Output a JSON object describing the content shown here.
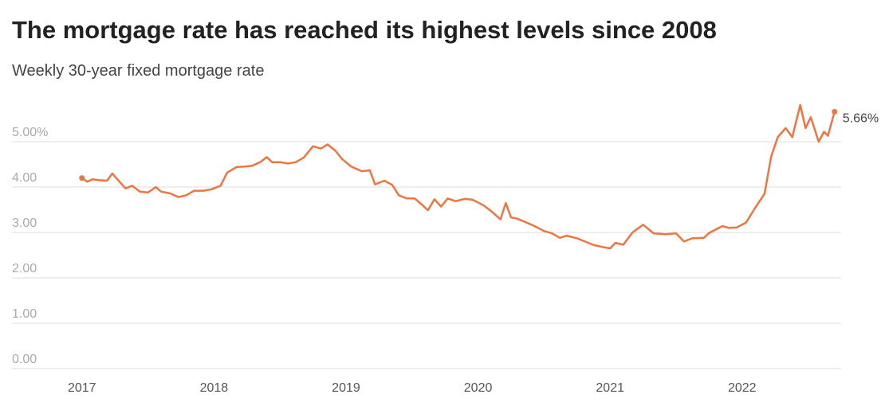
{
  "chart_data": {
    "type": "line",
    "title": "The mortgage rate has reached its highest levels since 2008",
    "subtitle": "Weekly 30-year fixed mortgage rate",
    "x": [
      2017.0,
      2017.04,
      2017.08,
      2017.13,
      2017.19,
      2017.23,
      2017.29,
      2017.33,
      2017.38,
      2017.44,
      2017.5,
      2017.56,
      2017.6,
      2017.67,
      2017.73,
      2017.79,
      2017.85,
      2017.92,
      2017.98,
      2018.05,
      2018.1,
      2018.17,
      2018.23,
      2018.29,
      2018.35,
      2018.4,
      2018.44,
      2018.5,
      2018.56,
      2018.62,
      2018.68,
      2018.75,
      2018.81,
      2018.86,
      2018.92,
      2018.97,
      2019.04,
      2019.12,
      2019.18,
      2019.22,
      2019.29,
      2019.35,
      2019.4,
      2019.46,
      2019.52,
      2019.58,
      2019.62,
      2019.67,
      2019.72,
      2019.77,
      2019.83,
      2019.9,
      2019.96,
      2020.04,
      2020.1,
      2020.17,
      2020.21,
      2020.25,
      2020.29,
      2020.35,
      2020.42,
      2020.5,
      2020.56,
      2020.62,
      2020.67,
      2020.75,
      2020.81,
      2020.88,
      2020.96,
      2021.0,
      2021.04,
      2021.1,
      2021.17,
      2021.25,
      2021.33,
      2021.42,
      2021.5,
      2021.56,
      2021.62,
      2021.71,
      2021.75,
      2021.85,
      2021.9,
      2021.96,
      2022.03,
      2022.1,
      2022.17,
      2022.22,
      2022.27,
      2022.33,
      2022.38,
      2022.44,
      2022.48,
      2022.52,
      2022.58,
      2022.62,
      2022.65,
      2022.7
    ],
    "series": [
      {
        "name": "30-year fixed",
        "color": "#ee7440",
        "values": [
          4.2,
          4.12,
          4.17,
          4.15,
          4.14,
          4.3,
          4.1,
          3.97,
          4.03,
          3.9,
          3.88,
          4.0,
          3.9,
          3.86,
          3.78,
          3.82,
          3.92,
          3.92,
          3.95,
          4.03,
          4.32,
          4.44,
          4.45,
          4.47,
          4.55,
          4.66,
          4.55,
          4.55,
          4.52,
          4.55,
          4.65,
          4.9,
          4.85,
          4.94,
          4.8,
          4.62,
          4.45,
          4.35,
          4.37,
          4.06,
          4.14,
          4.05,
          3.82,
          3.75,
          3.75,
          3.6,
          3.49,
          3.73,
          3.57,
          3.75,
          3.69,
          3.74,
          3.72,
          3.6,
          3.47,
          3.29,
          3.65,
          3.33,
          3.31,
          3.24,
          3.15,
          3.03,
          2.98,
          2.88,
          2.93,
          2.87,
          2.8,
          2.72,
          2.67,
          2.65,
          2.77,
          2.73,
          3.0,
          3.17,
          2.98,
          2.96,
          2.98,
          2.8,
          2.87,
          2.88,
          2.99,
          3.14,
          3.1,
          3.11,
          3.22,
          3.55,
          3.85,
          4.67,
          5.1,
          5.3,
          5.1,
          5.81,
          5.3,
          5.54,
          5.0,
          5.22,
          5.13,
          5.66
        ],
        "value_labels": [
          null,
          null,
          null,
          null,
          null,
          null,
          null,
          null,
          null,
          null,
          null,
          null,
          null,
          null,
          null,
          null,
          null,
          null,
          null,
          null,
          null,
          null,
          null,
          null,
          null,
          null,
          null,
          null,
          null,
          null,
          null,
          null,
          null,
          null,
          null,
          null,
          null,
          null,
          null,
          null,
          null,
          null,
          null,
          null,
          null,
          null,
          null,
          null,
          null,
          null,
          null,
          null,
          null,
          null,
          null,
          null,
          null,
          null,
          null,
          null,
          null,
          null,
          null,
          null,
          null,
          null,
          null,
          null,
          null,
          null,
          null,
          null,
          null,
          null,
          null,
          null,
          null,
          null,
          null,
          null,
          null,
          null,
          null,
          null,
          null,
          null,
          null,
          null,
          null,
          null,
          null,
          null,
          null,
          null,
          null,
          null,
          null,
          "5.66%"
        ]
      }
    ],
    "xlim": [
      2016.47,
      2022.75
    ],
    "xticks": [
      2017,
      2018,
      2019,
      2020,
      2021,
      2022
    ],
    "ylim": [
      0,
      6
    ],
    "yticks": [
      {
        "value": 0,
        "label": "0.00"
      },
      {
        "value": 1,
        "label": "1.00"
      },
      {
        "value": 2,
        "label": "2.00"
      },
      {
        "value": 3,
        "label": "3.00"
      },
      {
        "value": 4,
        "label": "4.00"
      },
      {
        "value": 5,
        "label": "5.00%"
      }
    ],
    "grid": true
  }
}
